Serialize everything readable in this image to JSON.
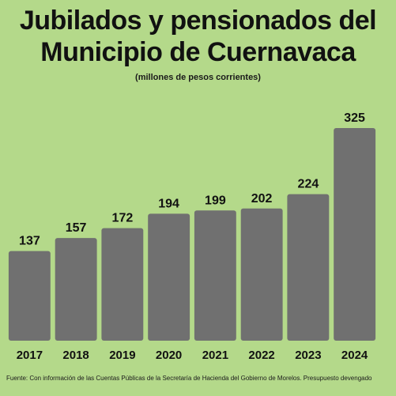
{
  "header": {
    "title_line1": "Jubilados y pensionados del",
    "title_line2": "Municipio de Cuernavaca",
    "subtitle": "(millones de pesos corrientes)"
  },
  "footer": {
    "source": "Fuente: Con información de las Cuentas Públicas de la  Secretaría de Hacienda del Gobierno de Morelos. Presupuesto devengado"
  },
  "colors": {
    "background": "#b4d98a",
    "bar": "#707070",
    "text": "#111111"
  },
  "chart_data": {
    "type": "bar",
    "title": "Jubilados y pensionados del Municipio de Cuernavaca",
    "subtitle": "(millones de pesos corrientes)",
    "categories": [
      "2017",
      "2018",
      "2019",
      "2020",
      "2021",
      "2022",
      "2023",
      "2024"
    ],
    "values": [
      137,
      157,
      172,
      194,
      199,
      202,
      224,
      325
    ],
    "data_labels": [
      "137",
      "157",
      "172",
      "194",
      "199",
      "202",
      "224",
      "325"
    ],
    "ylim": [
      0,
      325
    ],
    "grid": false,
    "legend": "none"
  }
}
